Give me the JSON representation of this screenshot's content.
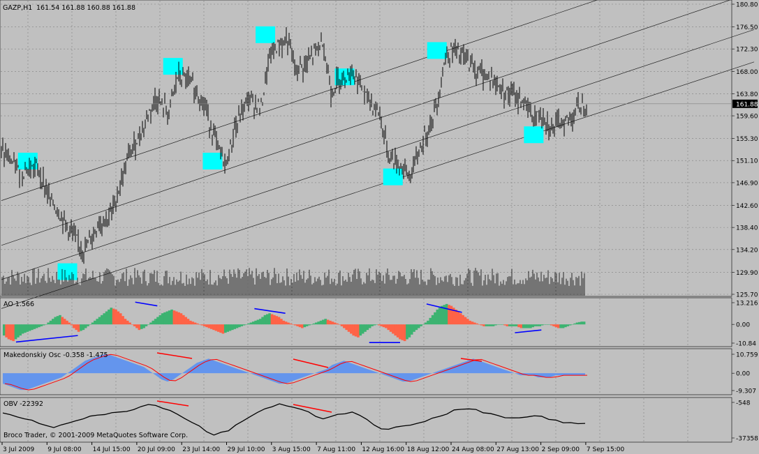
{
  "header": {
    "symbol": "GAZP,H1",
    "ohlc": "161.54 161.88 160.88 161.88"
  },
  "price_axis": {
    "ticks": [
      "180.80",
      "176.50",
      "172.30",
      "168.00",
      "163.80",
      "159.60",
      "155.30",
      "151.10",
      "146.90",
      "142.60",
      "138.40",
      "134.20",
      "129.90",
      "125.70"
    ],
    "current_price": "161.88"
  },
  "panels": {
    "ao": {
      "title": "AO 1.566",
      "ticks": [
        "13.216",
        "0.00",
        "-10.84"
      ]
    },
    "mk": {
      "title": "Makedonskiy Osc -0.358 -1.475",
      "ticks": [
        "10.759",
        "0.00",
        "-9.307"
      ]
    },
    "obv": {
      "title": "OBV -22392",
      "ticks": [
        "-548",
        "-37358"
      ]
    }
  },
  "copyright": "Broco Trader, © 2001-2009 MetaQuotes Software Corp.",
  "time_axis": [
    "3 Jul 2009",
    "9 Jul 08:00",
    "14 Jul 15:00",
    "20 Jul 09:00",
    "23 Jul 14:00",
    "29 Jul 10:00",
    "3 Aug 15:00",
    "7 Aug 11:00",
    "12 Aug 16:00",
    "18 Aug 12:00",
    "24 Aug 08:00",
    "27 Aug 13:00",
    "2 Sep 09:00",
    "7 Sep 15:00"
  ],
  "colors": {
    "background": "#c0c0c0",
    "candle": "#000000",
    "highlight": "#00ffff",
    "ao_up": "#3cb371",
    "ao_down": "#ff6347",
    "mk_fill": "#6495ed",
    "mk_signal": "#ff0000",
    "divergence_blue": "#0000ff",
    "divergence_red": "#ff0000"
  },
  "chart_data": {
    "type": "line",
    "title": "GAZP,H1",
    "price_anchors": [
      [
        0,
        153
      ],
      [
        4,
        149
      ],
      [
        8,
        150
      ],
      [
        11,
        144
      ],
      [
        14,
        140
      ],
      [
        17,
        136
      ],
      [
        19,
        134
      ],
      [
        22,
        139
      ],
      [
        25,
        141
      ],
      [
        29,
        152
      ],
      [
        32,
        157
      ],
      [
        35,
        163
      ],
      [
        38,
        160
      ],
      [
        40,
        167
      ],
      [
        43,
        166
      ],
      [
        46,
        162
      ],
      [
        49,
        154
      ],
      [
        51,
        150
      ],
      [
        53,
        157
      ],
      [
        56,
        163
      ],
      [
        59,
        161
      ],
      [
        61,
        171
      ],
      [
        63,
        173
      ],
      [
        65,
        174
      ],
      [
        67,
        168
      ],
      [
        70,
        170
      ],
      [
        73,
        174
      ],
      [
        75,
        164
      ],
      [
        77,
        167
      ],
      [
        80,
        168
      ],
      [
        83,
        163
      ],
      [
        84,
        162
      ],
      [
        86,
        160
      ],
      [
        88,
        152
      ],
      [
        91,
        150
      ],
      [
        93,
        148
      ],
      [
        95,
        153
      ],
      [
        97,
        157
      ],
      [
        99,
        162
      ],
      [
        101,
        171
      ],
      [
        103,
        172
      ],
      [
        106,
        170
      ],
      [
        108,
        168
      ],
      [
        111,
        167
      ],
      [
        113,
        165
      ],
      [
        115,
        164
      ],
      [
        117,
        163
      ],
      [
        119,
        162
      ],
      [
        121,
        159
      ],
      [
        123,
        160
      ],
      [
        125,
        157
      ],
      [
        127,
        158
      ],
      [
        129,
        159
      ],
      [
        131,
        161
      ],
      [
        133,
        161.88
      ]
    ],
    "ylim": [
      125.7,
      180.8
    ],
    "channel_lines": [
      {
        "start": [
          0,
          143.5
        ],
        "end": [
          133,
          180.5
        ]
      },
      {
        "start": [
          0,
          135.0
        ],
        "end": [
          133,
          172.0
        ]
      },
      {
        "start": [
          0,
          128.5
        ],
        "end": [
          133,
          165.0
        ]
      },
      {
        "start": [
          0,
          123.0
        ],
        "end": [
          133,
          159.0
        ]
      }
    ],
    "highlights": [
      {
        "bar": 6,
        "price": 151
      },
      {
        "bar": 15,
        "price": 130
      },
      {
        "bar": 39,
        "price": 169
      },
      {
        "bar": 48,
        "price": 151
      },
      {
        "bar": 60,
        "price": 175
      },
      {
        "bar": 78,
        "price": 167
      },
      {
        "bar": 89,
        "price": 148
      },
      {
        "bar": 99,
        "price": 172
      },
      {
        "bar": 121,
        "price": 156
      }
    ],
    "ao_series": [
      -6,
      -8,
      -9,
      -7,
      -5,
      -4,
      -3,
      -2,
      -1,
      0,
      2,
      4,
      5,
      3,
      1,
      -2,
      -4,
      -3,
      -1,
      1,
      3,
      5,
      7,
      9,
      8,
      6,
      3,
      1,
      -1,
      -3,
      -2,
      0,
      2,
      4,
      6,
      7,
      8,
      7,
      6,
      4,
      2,
      1,
      0,
      -1,
      -2,
      -3,
      -4,
      -5,
      -4,
      -3,
      -2,
      -1,
      0,
      1,
      2,
      3,
      5,
      6,
      5,
      4,
      2,
      1,
      0,
      -1,
      -2,
      -1,
      0,
      1,
      2,
      3,
      2,
      1,
      0,
      -2,
      -4,
      -6,
      -7,
      -5,
      -3,
      -1,
      0,
      -1,
      -2,
      -4,
      -6,
      -8,
      -9,
      -7,
      -4,
      -2,
      0,
      2,
      5,
      8,
      10,
      11,
      10,
      8,
      6,
      4,
      2,
      1,
      0,
      -1,
      -1,
      -1,
      0,
      0,
      -1,
      -1,
      -1,
      -2,
      -2,
      -2,
      -1,
      -1,
      0,
      0,
      -1,
      -2,
      -2,
      -1,
      0,
      1,
      1.5
    ],
    "ao_ylim": [
      -10.84,
      13.216
    ],
    "ao_divergences": [
      {
        "color": "blue",
        "from": [
          3,
          -9.5
        ],
        "to": [
          17,
          -6
        ]
      },
      {
        "color": "blue",
        "from": [
          30,
          12
        ],
        "to": [
          35,
          10
        ]
      },
      {
        "color": "blue",
        "from": [
          57,
          8.5
        ],
        "to": [
          64,
          6
        ]
      },
      {
        "color": "blue",
        "from": [
          83,
          -9.8
        ],
        "to": [
          90,
          -9.8
        ]
      },
      {
        "color": "blue",
        "from": [
          96,
          11
        ],
        "to": [
          104,
          6.5
        ]
      },
      {
        "color": "blue",
        "from": [
          116,
          -4.5
        ],
        "to": [
          122,
          -3
        ]
      }
    ],
    "mk_series": [
      -5,
      -6,
      -7,
      -8,
      -8,
      -7,
      -6,
      -5,
      -4,
      -3,
      -2,
      0,
      2,
      4,
      6,
      7,
      8,
      9,
      9,
      8,
      7,
      6,
      5,
      4,
      3,
      1,
      -1,
      -3,
      -4,
      -3,
      -1,
      1,
      3,
      5,
      6,
      7,
      6,
      5,
      4,
      3,
      2,
      1,
      0,
      -1,
      -2,
      -3,
      -4,
      -5,
      -5,
      -4,
      -3,
      -2,
      -1,
      0,
      1,
      2,
      4,
      5,
      6,
      5,
      4,
      3,
      2,
      1,
      0,
      -1,
      -2,
      -3,
      -4,
      -4,
      -3,
      -2,
      -1,
      0,
      1,
      2,
      3,
      4,
      5,
      6,
      7,
      6,
      5,
      4,
      3,
      2,
      1,
      0,
      -1,
      -1,
      -1,
      -2,
      -2,
      -2,
      -1,
      -1,
      -1,
      -1,
      -1,
      -1
    ],
    "mk_ylim": [
      -9.307,
      10.759
    ],
    "obv_series": [
      -12000,
      -13500,
      -15000,
      -16000,
      -19000,
      -22000,
      -24000,
      -25000,
      -23000,
      -21000,
      -19000,
      -17000,
      -15000,
      -13000,
      -12000,
      -11000,
      -10000,
      -9000,
      -7000,
      -4000,
      -2000,
      -3000,
      -6000,
      -9000,
      -12000,
      -16000,
      -20000,
      -25000,
      -30000,
      -33000,
      -31000,
      -28000,
      -24000,
      -19000,
      -14000,
      -10000,
      -7000,
      -5000,
      -3000,
      -4000,
      -6000,
      -8000,
      -11000,
      -14000,
      -16000,
      -15000,
      -13000,
      -12000,
      -11000,
      -14000,
      -18000,
      -23000,
      -26000,
      -27000,
      -26000,
      -25000,
      -24000,
      -22000,
      -19000,
      -17000,
      -15000,
      -12000,
      -9000,
      -7000,
      -6000,
      -8000,
      -10000,
      -12000,
      -14000,
      -16000,
      -17000,
      -16000,
      -15000,
      -14000,
      -15000,
      -17000,
      -19000,
      -20000,
      -21000,
      -22000,
      -22392
    ],
    "obv_ylim": [
      -37358,
      -548
    ],
    "volume_range": [
      0,
      18
    ]
  }
}
